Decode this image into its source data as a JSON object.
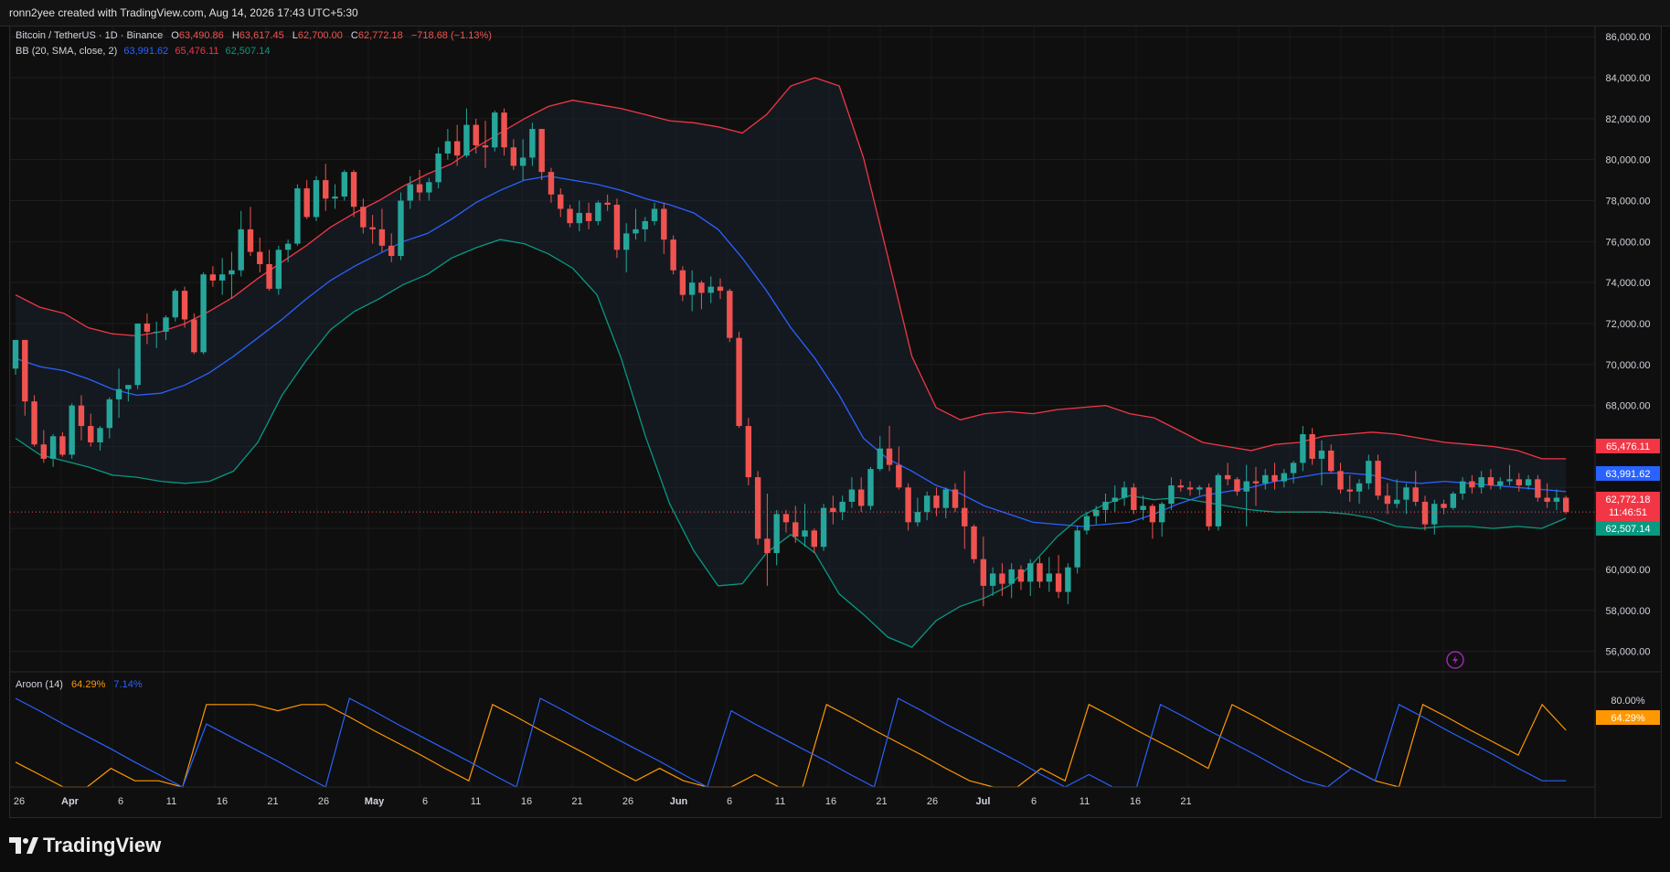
{
  "header": {
    "title": "ronn2yee created with TradingView.com, Aug 14, 2026 17:43 UTC+5:30"
  },
  "legend": {
    "symbol": "Bitcoin / TetherUS · 1D · Binance",
    "ohlc": [
      {
        "label": "O",
        "value": "63,490.86"
      },
      {
        "label": "H",
        "value": "63,617.45"
      },
      {
        "label": "L",
        "value": "62,700.00"
      },
      {
        "label": "C",
        "value": "62,772.18"
      }
    ],
    "change": "−718.68 (−1.13%)",
    "bb_label": "BB (20, SMA, close, 2)",
    "bb_basis": "63,991.62",
    "bb_upper": "65,476.11",
    "bb_lower": "62,507.14",
    "aroon_label": "Aroon (14)",
    "aroon_up": "64.29%",
    "aroon_down": "7.14%"
  },
  "colors": {
    "up": "#26a69a",
    "down": "#ef5350",
    "basis": "#2962ff",
    "upper": "#f23645",
    "lower": "#089981",
    "aroon_up": "#ff9800",
    "aroon_down": "#2962ff"
  },
  "price_axis": {
    "ticks": [
      "86,000.00",
      "84,000.00",
      "82,000.00",
      "80,000.00",
      "78,000.00",
      "76,000.00",
      "74,000.00",
      "72,000.00",
      "70,000.00",
      "68,000.00",
      "66,000.00",
      "60,000.00",
      "58,000.00",
      "56,000.00"
    ],
    "tags": {
      "upper": "65,476.11",
      "basis": "63,991.62",
      "close": "62,772.18",
      "countdown": "11:46:51",
      "lower": "62,507.14"
    }
  },
  "aroon_axis": {
    "tick": "80.00%",
    "tag": "64.29%"
  },
  "time_axis": [
    "26",
    "Apr",
    "6",
    "11",
    "16",
    "21",
    "26",
    "May",
    "6",
    "11",
    "16",
    "21",
    "26",
    "Jun",
    "6",
    "11",
    "16",
    "21",
    "26",
    "Jul",
    "6",
    "11",
    "16",
    "21"
  ],
  "footer": {
    "brand": "TradingView"
  },
  "chart_data": {
    "type": "candlestick",
    "ylim": [
      55000,
      86500
    ],
    "candles_ohlc": [
      [
        69800,
        71200,
        69500,
        71200
      ],
      [
        71200,
        71200,
        67500,
        68200
      ],
      [
        68200,
        68500,
        66000,
        66100
      ],
      [
        66100,
        66800,
        65200,
        65400
      ],
      [
        65400,
        66600,
        65000,
        66500
      ],
      [
        66500,
        66700,
        65500,
        65600
      ],
      [
        65600,
        68100,
        65400,
        68000
      ],
      [
        68000,
        68500,
        66300,
        67000
      ],
      [
        67000,
        67600,
        66000,
        66200
      ],
      [
        66200,
        67000,
        65800,
        66900
      ],
      [
        66900,
        68400,
        66400,
        68300
      ],
      [
        68300,
        69800,
        67400,
        68800
      ],
      [
        68800,
        69000,
        68200,
        69000
      ],
      [
        69000,
        72000,
        68800,
        72000
      ],
      [
        72000,
        72500,
        71000,
        71600
      ],
      [
        71600,
        72100,
        70800,
        71600
      ],
      [
        71600,
        72400,
        71200,
        72300
      ],
      [
        72300,
        73700,
        72100,
        73600
      ],
      [
        73600,
        73800,
        71800,
        72200
      ],
      [
        72200,
        72500,
        70500,
        70600
      ],
      [
        70600,
        74500,
        70500,
        74400
      ],
      [
        74400,
        74800,
        73800,
        74100
      ],
      [
        74100,
        75200,
        73400,
        74400
      ],
      [
        74400,
        75500,
        73200,
        74600
      ],
      [
        74600,
        77500,
        74300,
        76600
      ],
      [
        76600,
        77700,
        75300,
        75500
      ],
      [
        75500,
        76200,
        74500,
        74900
      ],
      [
        74900,
        75600,
        73600,
        73700
      ],
      [
        73700,
        75800,
        73400,
        75600
      ],
      [
        75600,
        76100,
        75000,
        75900
      ],
      [
        75900,
        78800,
        75800,
        78600
      ],
      [
        78600,
        79000,
        77100,
        77200
      ],
      [
        77200,
        79200,
        77000,
        79000
      ],
      [
        79000,
        79800,
        77500,
        78100
      ],
      [
        78100,
        78800,
        77600,
        78200
      ],
      [
        78200,
        79500,
        78000,
        79400
      ],
      [
        79400,
        79500,
        77200,
        77700
      ],
      [
        77700,
        78100,
        76400,
        76700
      ],
      [
        76700,
        77300,
        75900,
        76600
      ],
      [
        76600,
        77600,
        75500,
        75800
      ],
      [
        75800,
        76400,
        75000,
        75300
      ],
      [
        75300,
        78400,
        75100,
        78000
      ],
      [
        78000,
        79200,
        77600,
        78800
      ],
      [
        78800,
        79500,
        78000,
        78400
      ],
      [
        78400,
        79100,
        78000,
        78900
      ],
      [
        78900,
        80600,
        78600,
        80300
      ],
      [
        80300,
        81500,
        80000,
        80900
      ],
      [
        80900,
        81700,
        79700,
        80200
      ],
      [
        80200,
        82500,
        80100,
        81700
      ],
      [
        81700,
        82000,
        80300,
        80700
      ],
      [
        80700,
        81900,
        79600,
        80600
      ],
      [
        80600,
        82400,
        80400,
        82300
      ],
      [
        82300,
        82500,
        80200,
        80600
      ],
      [
        80600,
        81000,
        79500,
        79700
      ],
      [
        79700,
        81000,
        79000,
        80100
      ],
      [
        80100,
        81800,
        79700,
        81500
      ],
      [
        81500,
        81500,
        79000,
        79400
      ],
      [
        79400,
        79600,
        77900,
        78300
      ],
      [
        78300,
        78600,
        77200,
        77600
      ],
      [
        77600,
        77800,
        76700,
        76900
      ],
      [
        76900,
        78000,
        76500,
        77400
      ],
      [
        77400,
        77900,
        76600,
        77000
      ],
      [
        77000,
        78000,
        76800,
        77900
      ],
      [
        77900,
        78300,
        77500,
        77800
      ],
      [
        77800,
        78100,
        75200,
        75600
      ],
      [
        75600,
        76900,
        74500,
        76400
      ],
      [
        76400,
        77600,
        76100,
        76600
      ],
      [
        76600,
        77200,
        76000,
        77000
      ],
      [
        77000,
        77900,
        76800,
        77600
      ],
      [
        77600,
        77900,
        75400,
        76100
      ],
      [
        76100,
        76300,
        74400,
        74600
      ],
      [
        74600,
        74800,
        73100,
        73400
      ],
      [
        73400,
        74600,
        72600,
        74000
      ],
      [
        74000,
        74100,
        72700,
        73500
      ],
      [
        73500,
        74300,
        73000,
        73800
      ],
      [
        73800,
        74200,
        73200,
        73600
      ],
      [
        73600,
        73700,
        71100,
        71300
      ],
      [
        71300,
        71600,
        66900,
        67000
      ],
      [
        67000,
        67400,
        64100,
        64500
      ],
      [
        64500,
        64800,
        61200,
        61500
      ],
      [
        61500,
        63700,
        59200,
        60800
      ],
      [
        60800,
        62900,
        60200,
        62700
      ],
      [
        62700,
        62900,
        61800,
        62300
      ],
      [
        62300,
        63100,
        61300,
        61600
      ],
      [
        61600,
        63200,
        61100,
        61900
      ],
      [
        61900,
        62000,
        60800,
        61100
      ],
      [
        61100,
        63200,
        60900,
        63000
      ],
      [
        63000,
        63600,
        62200,
        62800
      ],
      [
        62800,
        63600,
        62400,
        63300
      ],
      [
        63300,
        64500,
        63000,
        63900
      ],
      [
        63900,
        64500,
        62800,
        63100
      ],
      [
        63100,
        65000,
        62900,
        64900
      ],
      [
        64900,
        66500,
        64800,
        65900
      ],
      [
        65900,
        67000,
        64800,
        65100
      ],
      [
        65100,
        66000,
        63900,
        64000
      ],
      [
        64000,
        64200,
        61900,
        62300
      ],
      [
        62300,
        63500,
        62100,
        62800
      ],
      [
        62800,
        63800,
        62400,
        63600
      ],
      [
        63600,
        64000,
        62600,
        63000
      ],
      [
        63000,
        64000,
        62500,
        63900
      ],
      [
        63900,
        64200,
        62800,
        63000
      ],
      [
        63000,
        64800,
        61000,
        62100
      ],
      [
        62100,
        62200,
        60300,
        60500
      ],
      [
        60500,
        61600,
        58200,
        59200
      ],
      [
        59200,
        60100,
        58700,
        59800
      ],
      [
        59800,
        60300,
        58700,
        59300
      ],
      [
        59300,
        60300,
        58600,
        60000
      ],
      [
        60000,
        60200,
        59000,
        59400
      ],
      [
        59400,
        60500,
        58700,
        60300
      ],
      [
        60300,
        60600,
        59100,
        59400
      ],
      [
        59400,
        60600,
        58900,
        59800
      ],
      [
        59800,
        60700,
        58600,
        58900
      ],
      [
        58900,
        60300,
        58300,
        60100
      ],
      [
        60100,
        62100,
        59800,
        61900
      ],
      [
        61900,
        62800,
        61700,
        62600
      ],
      [
        62600,
        63100,
        62200,
        62900
      ],
      [
        62900,
        63700,
        62300,
        63300
      ],
      [
        63300,
        64100,
        62800,
        63500
      ],
      [
        63500,
        64300,
        63100,
        64000
      ],
      [
        64000,
        64200,
        62700,
        62900
      ],
      [
        62900,
        63600,
        62400,
        63100
      ],
      [
        63100,
        63200,
        61500,
        62300
      ],
      [
        62300,
        63300,
        61600,
        63200
      ],
      [
        63200,
        64500,
        62900,
        64100
      ],
      [
        64100,
        64400,
        63800,
        64000
      ],
      [
        64000,
        64300,
        63600,
        63900
      ],
      [
        63900,
        64100,
        63600,
        64000
      ],
      [
        64000,
        64200,
        61900,
        62100
      ],
      [
        62100,
        64700,
        61900,
        64600
      ],
      [
        64600,
        65200,
        64100,
        64400
      ],
      [
        64400,
        64500,
        63600,
        63800
      ],
      [
        63800,
        65100,
        62100,
        64300
      ],
      [
        64300,
        65000,
        63100,
        64200
      ],
      [
        64200,
        64900,
        63900,
        64600
      ],
      [
        64600,
        65200,
        63900,
        64300
      ],
      [
        64300,
        64900,
        64000,
        64700
      ],
      [
        64700,
        65300,
        64200,
        65200
      ],
      [
        65200,
        67000,
        64800,
        66600
      ],
      [
        66600,
        66900,
        65100,
        65400
      ],
      [
        65400,
        66300,
        64100,
        65800
      ],
      [
        65800,
        66100,
        64700,
        64800
      ],
      [
        64800,
        65200,
        63700,
        63900
      ],
      [
        63900,
        64600,
        63300,
        63800
      ],
      [
        63800,
        64400,
        63200,
        64200
      ],
      [
        64200,
        65600,
        63900,
        65300
      ],
      [
        65300,
        65600,
        63400,
        63600
      ],
      [
        63600,
        64200,
        62700,
        63200
      ],
      [
        63200,
        64400,
        63000,
        63400
      ],
      [
        63400,
        64200,
        62700,
        64000
      ],
      [
        64000,
        64800,
        63100,
        63300
      ],
      [
        63300,
        63600,
        61900,
        62200
      ],
      [
        62200,
        63400,
        61700,
        63200
      ],
      [
        63200,
        63400,
        62700,
        63000
      ],
      [
        63000,
        63800,
        62900,
        63700
      ],
      [
        63700,
        64500,
        63400,
        64300
      ],
      [
        64300,
        64600,
        63700,
        64000
      ],
      [
        64000,
        64800,
        63700,
        64500
      ],
      [
        64500,
        64900,
        63900,
        64100
      ],
      [
        64100,
        64500,
        63900,
        64300
      ],
      [
        64300,
        65100,
        64100,
        64400
      ],
      [
        64400,
        64700,
        63800,
        64100
      ],
      [
        64100,
        64600,
        63900,
        64400
      ],
      [
        64400,
        64600,
        63300,
        63500
      ],
      [
        63500,
        64200,
        63000,
        63300
      ],
      [
        63300,
        63900,
        62900,
        63500
      ],
      [
        63500,
        63600,
        62700,
        62800
      ]
    ],
    "bollinger": {
      "upper": [
        73400,
        72800,
        72500,
        71800,
        71500,
        71400,
        71600,
        72000,
        72600,
        73300,
        74200,
        75000,
        75800,
        76700,
        77400,
        78000,
        78700,
        79300,
        79800,
        80600,
        81300,
        82000,
        82600,
        82900,
        82700,
        82500,
        82200,
        81900,
        81800,
        81600,
        81300,
        82200,
        83600,
        84000,
        83600,
        80100,
        75300,
        70400,
        67900,
        67300,
        67600,
        67700,
        67600,
        67800,
        67900,
        68000,
        67600,
        67400,
        66800,
        66200,
        66000,
        65800,
        66100,
        66200,
        66500,
        66600,
        66700,
        66600,
        66400,
        66200,
        66100,
        66000,
        65800,
        65400,
        65400
      ],
      "basis": [
        70300,
        69900,
        69700,
        69300,
        68800,
        68500,
        68600,
        69000,
        69600,
        70400,
        71300,
        72200,
        73200,
        74100,
        74800,
        75400,
        76000,
        76400,
        77100,
        77900,
        78500,
        79000,
        79200,
        79000,
        78800,
        78500,
        78100,
        77800,
        77400,
        76600,
        75200,
        73600,
        71800,
        70300,
        68500,
        66400,
        65400,
        64800,
        64100,
        63700,
        63100,
        62700,
        62300,
        62200,
        62100,
        62200,
        62300,
        62700,
        63200,
        63600,
        63800,
        64000,
        64300,
        64500,
        64700,
        64700,
        64600,
        64300,
        64200,
        64300,
        64200,
        64100,
        64000,
        63900,
        63800
      ],
      "lower": [
        66400,
        65600,
        65300,
        65000,
        64600,
        64500,
        64300,
        64200,
        64300,
        64800,
        66200,
        68500,
        70200,
        71700,
        72600,
        73200,
        73900,
        74400,
        75200,
        75700,
        76100,
        75900,
        75400,
        74700,
        73400,
        70300,
        66500,
        63200,
        60900,
        59200,
        59300,
        60800,
        61700,
        60800,
        58800,
        57800,
        56700,
        56200,
        57500,
        58200,
        58600,
        59200,
        60300,
        61600,
        62600,
        63200,
        63600,
        63400,
        63500,
        63300,
        63100,
        62900,
        62800,
        62800,
        62800,
        62700,
        62500,
        62100,
        62000,
        62100,
        62100,
        62000,
        62100,
        62000,
        62500
      ]
    },
    "aroon": {
      "up": [
        28,
        14,
        0,
        0,
        21,
        7,
        7,
        0,
        93,
        93,
        93,
        86,
        93,
        93,
        79,
        64,
        50,
        36,
        21,
        7,
        93,
        79,
        64,
        50,
        36,
        21,
        7,
        21,
        7,
        0,
        0,
        14,
        0,
        0,
        93,
        79,
        64,
        50,
        36,
        21,
        7,
        0,
        0,
        21,
        7,
        93,
        79,
        64,
        50,
        36,
        21,
        93,
        79,
        64,
        50,
        36,
        21,
        7,
        0,
        93,
        79,
        64,
        50,
        36,
        93,
        64
      ],
      "down": [
        100,
        86,
        71,
        57,
        43,
        28,
        14,
        0,
        71,
        57,
        43,
        29,
        14,
        0,
        100,
        86,
        71,
        57,
        43,
        29,
        14,
        0,
        100,
        86,
        71,
        57,
        43,
        29,
        14,
        0,
        86,
        71,
        57,
        43,
        29,
        14,
        0,
        100,
        86,
        71,
        57,
        43,
        29,
        14,
        0,
        14,
        0,
        0,
        93,
        79,
        64,
        50,
        36,
        21,
        7,
        0,
        21,
        7,
        93,
        79,
        64,
        50,
        36,
        21,
        7,
        7
      ]
    },
    "aroon_ylim": [
      0,
      100
    ]
  }
}
